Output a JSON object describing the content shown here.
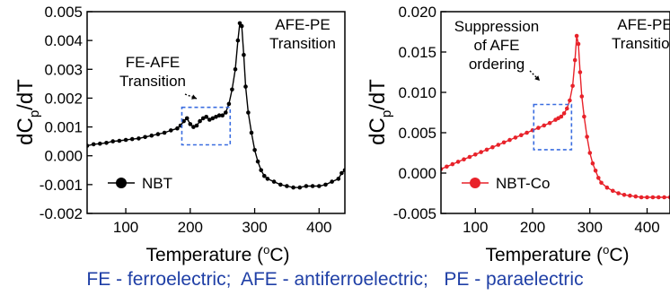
{
  "footer": "FE - ferroelectric;  AFE - antiferroelectric;   PE - paraelectric",
  "colors": {
    "footer": "#1f3fa6",
    "nbt": "#000000",
    "nbtco": "#e8222a",
    "box": "#3a6de0"
  },
  "chart_data": [
    {
      "type": "scatter",
      "title": "",
      "xlabel": "Temperature (°C)",
      "ylabel": "dC_p/dT",
      "xlim": [
        40,
        440
      ],
      "ylim": [
        -0.002,
        0.005
      ],
      "xticks": [
        100,
        200,
        300,
        400
      ],
      "yticks": [
        -0.002,
        -0.001,
        0.0,
        0.001,
        0.002,
        0.003,
        0.004,
        0.005
      ],
      "ytick_labels": [
        "-0.002",
        "-0.001",
        "0.000",
        "0.001",
        "0.002",
        "0.003",
        "0.004",
        "0.005"
      ],
      "grid": false,
      "legend": "lower-left",
      "series": [
        {
          "name": "NBT",
          "x": [
            40,
            50,
            60,
            70,
            80,
            90,
            100,
            110,
            120,
            130,
            140,
            150,
            160,
            170,
            180,
            185,
            190,
            195,
            200,
            205,
            210,
            215,
            220,
            225,
            230,
            235,
            240,
            245,
            250,
            255,
            260,
            265,
            270,
            274,
            277,
            280,
            283,
            286,
            290,
            295,
            300,
            305,
            310,
            315,
            320,
            330,
            340,
            350,
            360,
            370,
            380,
            390,
            400,
            410,
            420,
            430,
            435,
            440
          ],
          "y": [
            0.00035,
            0.0004,
            0.00042,
            0.00045,
            0.0005,
            0.00052,
            0.00055,
            0.00058,
            0.0006,
            0.00065,
            0.0007,
            0.00075,
            0.0008,
            0.00088,
            0.00095,
            0.00105,
            0.0012,
            0.0013,
            0.0011,
            0.001,
            0.00105,
            0.0012,
            0.0013,
            0.00135,
            0.00125,
            0.0013,
            0.00135,
            0.0014,
            0.0014,
            0.0015,
            0.0018,
            0.0023,
            0.003,
            0.004,
            0.0046,
            0.0045,
            0.0035,
            0.0024,
            0.0015,
            0.0008,
            0.0002,
            -0.0002,
            -0.0005,
            -0.0007,
            -0.0008,
            -0.0009,
            -0.001,
            -0.00105,
            -0.0011,
            -0.0011,
            -0.00105,
            -0.00105,
            -0.00105,
            -0.001,
            -0.0009,
            -0.0008,
            -0.0006,
            -0.0005
          ]
        }
      ],
      "annotations": [
        {
          "text": "AFE-PE Transition",
          "lines": [
            "AFE-PE",
            "Transition"
          ]
        },
        {
          "text": "FE-AFE Transition",
          "lines": [
            "FE-AFE",
            "Transition"
          ]
        }
      ],
      "highlight_box": {
        "x": [
          187,
          262
        ],
        "y": [
          0.00038,
          0.00168
        ]
      }
    },
    {
      "type": "scatter",
      "title": "",
      "xlabel": "Temperature (°C)",
      "ylabel": "dC_p/dT",
      "xlim": [
        40,
        440
      ],
      "ylim": [
        -0.005,
        0.02
      ],
      "xticks": [
        100,
        200,
        300,
        400
      ],
      "yticks": [
        -0.005,
        0.0,
        0.005,
        0.01,
        0.015,
        0.02
      ],
      "ytick_labels": [
        "-0.005",
        "0.000",
        "0.005",
        "0.010",
        "0.015",
        "0.020"
      ],
      "grid": false,
      "legend": "lower-left",
      "series": [
        {
          "name": "NBT-Co",
          "x": [
            40,
            50,
            60,
            70,
            80,
            90,
            100,
            110,
            120,
            130,
            140,
            150,
            160,
            170,
            180,
            190,
            200,
            210,
            220,
            230,
            240,
            245,
            250,
            255,
            260,
            265,
            270,
            274,
            277,
            280,
            283,
            286,
            290,
            295,
            300,
            305,
            310,
            315,
            320,
            330,
            340,
            350,
            360,
            370,
            380,
            390,
            400,
            410,
            420,
            430,
            440
          ],
          "y": [
            0.0005,
            0.0008,
            0.0011,
            0.0014,
            0.0017,
            0.002,
            0.0023,
            0.0026,
            0.0029,
            0.0032,
            0.0035,
            0.0038,
            0.0041,
            0.0044,
            0.0047,
            0.005,
            0.0053,
            0.0056,
            0.0059,
            0.0062,
            0.0066,
            0.0068,
            0.007,
            0.0074,
            0.008,
            0.009,
            0.0108,
            0.014,
            0.017,
            0.016,
            0.0125,
            0.0095,
            0.007,
            0.0045,
            0.0025,
            0.0012,
            0.0003,
            -0.0006,
            -0.0012,
            -0.0018,
            -0.0022,
            -0.0025,
            -0.0027,
            -0.0028,
            -0.0029,
            -0.003,
            -0.003,
            -0.003,
            -0.003,
            -0.003,
            -0.003
          ]
        }
      ],
      "annotations": [
        {
          "text": "AFE-PE Transition",
          "lines": [
            "AFE-PE",
            "Transition"
          ]
        },
        {
          "text": "Suppression of AFE ordering",
          "lines": [
            "Suppression",
            "of AFE",
            "ordering"
          ]
        }
      ],
      "highlight_box": {
        "x": [
          202,
          268
        ],
        "y": [
          0.0029,
          0.0085
        ]
      }
    }
  ]
}
